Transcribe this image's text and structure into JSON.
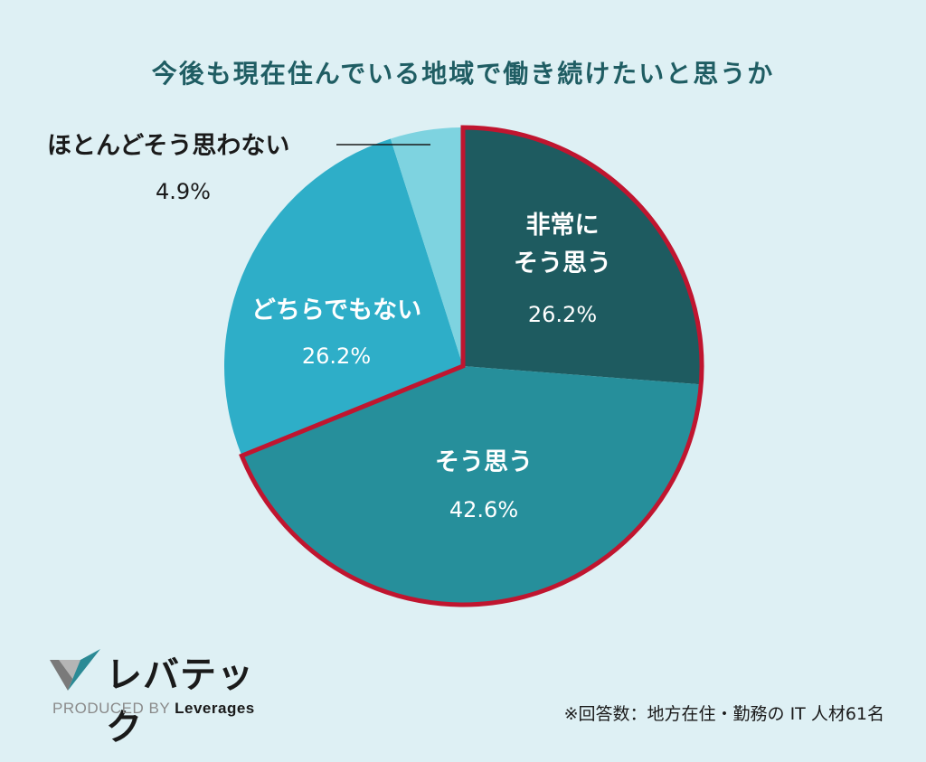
{
  "chart_data": {
    "type": "pie",
    "title": "今後も現在住んでいる地域で働き続けたいと思うか",
    "unit": "%",
    "start_angle": "12 o'clock, clockwise",
    "highlighted": [
      "非常にそう思う",
      "そう思う"
    ],
    "slices": [
      {
        "label_lines": [
          "非常に",
          "そう思う"
        ],
        "label": "非常にそう思う",
        "value": 26.2,
        "value_text": "26.2%",
        "color": "#1e5b60"
      },
      {
        "label_lines": [
          "そう思う"
        ],
        "label": "そう思う",
        "value": 42.6,
        "value_text": "42.6%",
        "color": "#268f9b"
      },
      {
        "label_lines": [
          "どちらでもない"
        ],
        "label": "どちらでもない",
        "value": 26.2,
        "value_text": "26.2%",
        "color": "#2eaec8"
      },
      {
        "label_lines": [
          "ほとんどそう思わない"
        ],
        "label": "ほとんどそう思わない",
        "value": 4.9,
        "value_text": "4.9%",
        "color": "#7ed3e0"
      }
    ],
    "highlight_color": "#c0152f"
  },
  "brand": {
    "name": "レバテック",
    "produced_by": "PRODUCED BY",
    "company": "Leverages"
  },
  "footnote": "※回答数：地方在住・勤務の IT 人材61名",
  "colors": {
    "background": "#def0f4",
    "title": "#1f5d63"
  }
}
